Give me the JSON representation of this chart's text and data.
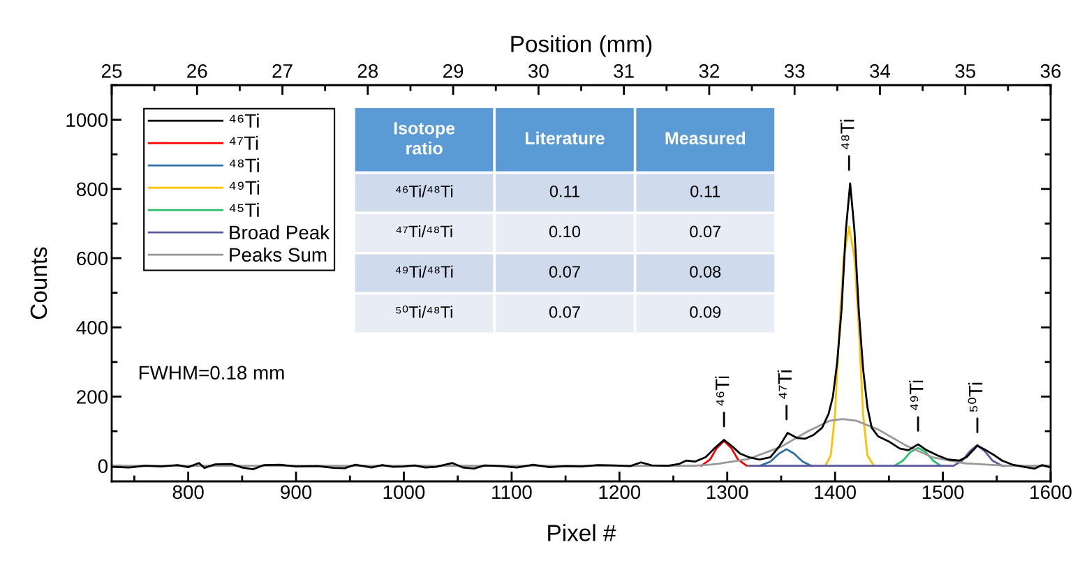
{
  "chart_data": {
    "type": "line",
    "xlabel": "Pixel #",
    "ylabel": "Counts",
    "x2label": "Position (mm)",
    "xlim": [
      729,
      1600
    ],
    "xticks": [
      800,
      900,
      1000,
      1100,
      1200,
      1300,
      1400,
      1500,
      1600
    ],
    "x2lim": [
      25,
      36
    ],
    "x2ticks": [
      25,
      26,
      27,
      28,
      29,
      30,
      31,
      32,
      33,
      34,
      35,
      36
    ],
    "ylim": [
      -45,
      1100
    ],
    "yticks": [
      0,
      200,
      400,
      600,
      800,
      1000
    ],
    "grid": false,
    "legend": "top left",
    "marker": "none",
    "line_style": "solid",
    "series": [
      {
        "name": "⁴⁶Ti",
        "color": "#000000",
        "x": [
          729,
          745,
          760,
          775,
          790,
          800,
          810,
          815,
          825,
          840,
          850,
          860,
          870,
          885,
          900,
          920,
          935,
          945,
          955,
          970,
          980,
          990,
          1000,
          1010,
          1020,
          1030,
          1045,
          1055,
          1065,
          1075,
          1090,
          1105,
          1120,
          1135,
          1150,
          1165,
          1180,
          1195,
          1210,
          1220,
          1230,
          1245,
          1255,
          1262,
          1270,
          1280,
          1288,
          1297,
          1305,
          1312,
          1320,
          1330,
          1340,
          1348,
          1356,
          1365,
          1372,
          1380,
          1388,
          1394,
          1398,
          1402,
          1406,
          1410,
          1414,
          1418,
          1422,
          1426,
          1430,
          1434,
          1440,
          1450,
          1460,
          1468,
          1477,
          1485,
          1495,
          1505,
          1515,
          1522,
          1532,
          1540,
          1548,
          1555,
          1565,
          1575,
          1585,
          1592,
          1600
        ],
        "values": [
          -3,
          -5,
          0,
          -2,
          2,
          -4,
          8,
          -6,
          4,
          5,
          -5,
          -10,
          2,
          3,
          -2,
          -1,
          -6,
          -7,
          3,
          -5,
          2,
          -3,
          -2,
          1,
          -5,
          -3,
          8,
          -5,
          -8,
          1,
          -1,
          -5,
          3,
          -4,
          -1,
          -2,
          2,
          1,
          -1,
          10,
          1,
          0,
          5,
          15,
          12,
          25,
          50,
          75,
          55,
          35,
          25,
          18,
          25,
          55,
          95,
          80,
          78,
          89,
          110,
          150,
          200,
          300,
          450,
          680,
          816,
          680,
          450,
          280,
          170,
          110,
          85,
          70,
          50,
          45,
          62,
          45,
          30,
          18,
          15,
          25,
          58,
          45,
          30,
          15,
          3,
          -3,
          -8,
          2,
          -5
        ]
      },
      {
        "name": "⁴⁷Ti",
        "color": "#ff0000",
        "x": [
          1276,
          1284,
          1290,
          1297,
          1304,
          1310,
          1318
        ],
        "values": [
          0,
          18,
          50,
          72,
          50,
          18,
          0
        ]
      },
      {
        "name": "⁴⁸Ti",
        "color": "#2e6fa7",
        "x": [
          1330,
          1340,
          1348,
          1355,
          1362,
          1370,
          1378
        ],
        "values": [
          0,
          12,
          35,
          48,
          35,
          12,
          0
        ]
      },
      {
        "name": "⁴⁹Ti",
        "color": "#ffc000",
        "x": [
          1391,
          1396,
          1400,
          1404,
          1408,
          1413,
          1418,
          1422,
          1426,
          1430,
          1436
        ],
        "values": [
          0,
          30,
          150,
          400,
          600,
          691,
          600,
          400,
          150,
          30,
          0
        ]
      },
      {
        "name": "⁴⁵Ti",
        "color": "#2ebd6b",
        "x": [
          1455,
          1463,
          1470,
          1477,
          1484,
          1491,
          1498
        ],
        "values": [
          0,
          15,
          40,
          52,
          40,
          15,
          0
        ]
      },
      {
        "name": "Broad Peak",
        "color": "#5a5a9a",
        "x": [
          1320,
          1510,
          1518,
          1525,
          1532,
          1539,
          1546,
          1555,
          1560
        ],
        "values": [
          0,
          0,
          15,
          42,
          60,
          42,
          15,
          0,
          0
        ]
      },
      {
        "name": "Peaks Sum",
        "color": "#999999",
        "x": [
          729,
          1270,
          1290,
          1320,
          1350,
          1375,
          1395,
          1407,
          1420,
          1440,
          1465,
          1490,
          1520,
          1560,
          1600
        ],
        "values": [
          0,
          0,
          5,
          20,
          55,
          100,
          130,
          135,
          130,
          105,
          60,
          25,
          7,
          0,
          0
        ]
      }
    ],
    "annotations": [
      "FWHM=0.18 mm",
      "⁴⁶Ti",
      "⁴⁷Ti",
      "⁴⁸Ti",
      "⁴⁹Ti",
      "⁵⁰Ti",
      "Isotope\nratio",
      "Literature",
      "Measured",
      "⁴⁶Ti/⁴⁸Ti",
      "0.11",
      "0.11",
      "⁴⁷Ti/⁴⁸Ti",
      "0.10",
      "0.07",
      "⁴⁹Ti/⁴⁸Ti",
      "0.07",
      "0.08",
      "⁵⁰Ti/⁴⁸Ti",
      "0.07",
      "0.09"
    ]
  }
}
